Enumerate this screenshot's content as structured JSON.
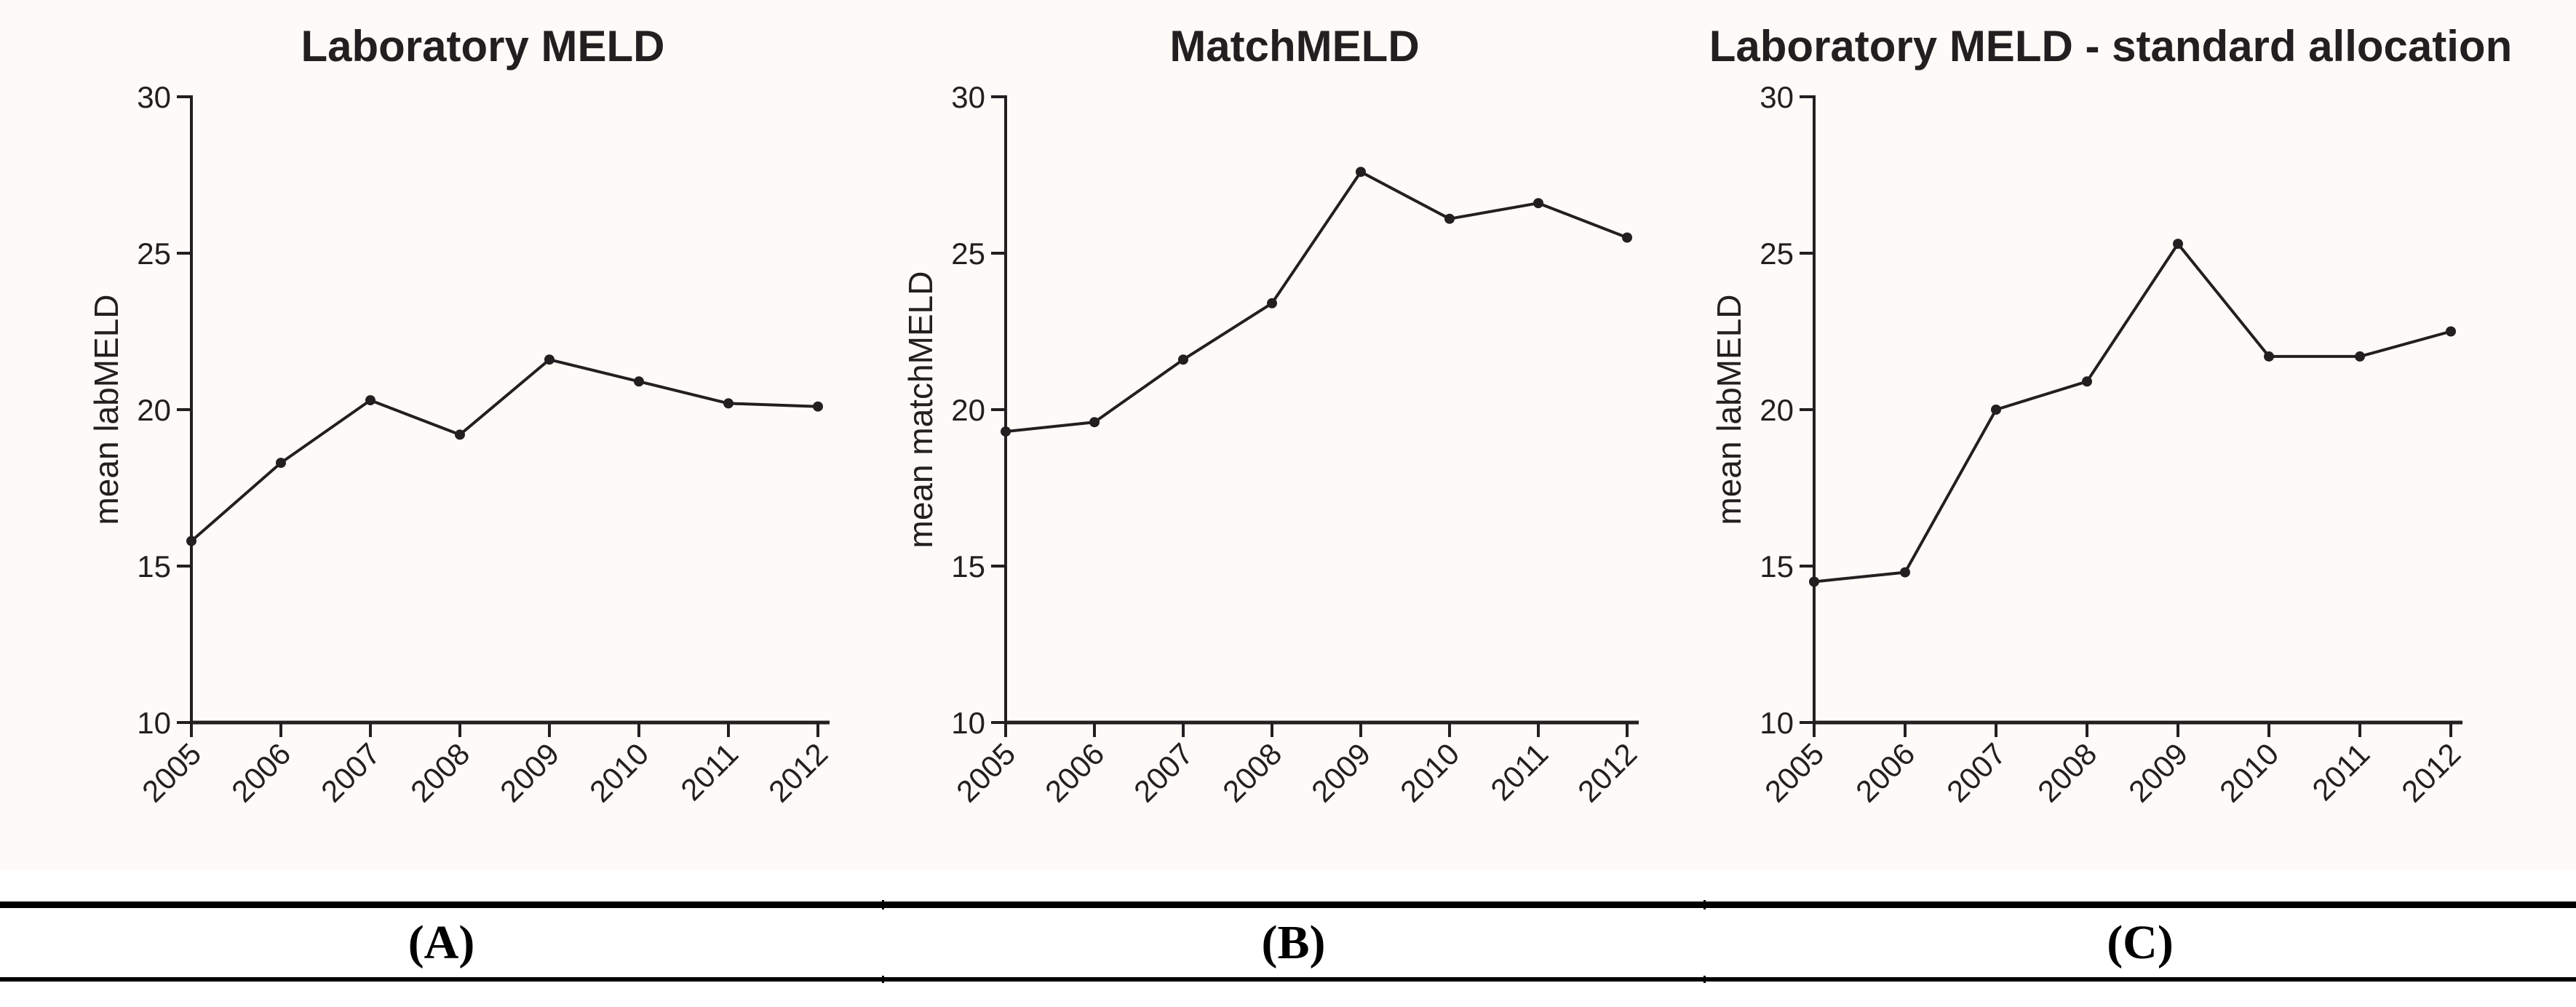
{
  "figure": {
    "kind": "three-panel line figure",
    "text_color": "#231f20",
    "background": "#fcfbf8"
  },
  "chart_data": [
    {
      "type": "line",
      "title": "Laboratory MELD",
      "ylabel": "mean labMELD",
      "x": [
        2005,
        2006,
        2007,
        2008,
        2009,
        2010,
        2011,
        2012
      ],
      "values": [
        15.8,
        18.3,
        20.3,
        19.2,
        21.6,
        20.9,
        20.2,
        20.1
      ],
      "ylim": [
        10,
        30
      ],
      "yticks": [
        10,
        15,
        20,
        25,
        30
      ],
      "grid": false,
      "legend": "none",
      "line_color": "#231f20",
      "marker": "circle"
    },
    {
      "type": "line",
      "title": "MatchMELD",
      "ylabel": "mean matchMELD",
      "x": [
        2005,
        2006,
        2007,
        2008,
        2009,
        2010,
        2011,
        2012
      ],
      "values": [
        19.3,
        19.6,
        21.6,
        23.4,
        27.6,
        26.1,
        26.6,
        25.5
      ],
      "ylim": [
        10,
        30
      ],
      "yticks": [
        10,
        15,
        20,
        25,
        30
      ],
      "grid": false,
      "legend": "none",
      "line_color": "#231f20",
      "marker": "circle"
    },
    {
      "type": "line",
      "title": "Laboratory MELD - standard allocation",
      "ylabel": "mean labMELD",
      "x": [
        2005,
        2006,
        2007,
        2008,
        2009,
        2010,
        2011,
        2012
      ],
      "values": [
        14.5,
        14.8,
        20.0,
        20.9,
        25.3,
        21.7,
        21.7,
        22.5
      ],
      "ylim": [
        10,
        30
      ],
      "yticks": [
        10,
        15,
        20,
        25,
        30
      ],
      "grid": false,
      "legend": "none",
      "line_color": "#231f20",
      "marker": "circle"
    }
  ],
  "caption_row": {
    "labels": [
      "(A)",
      "(B)",
      "(C)"
    ]
  }
}
